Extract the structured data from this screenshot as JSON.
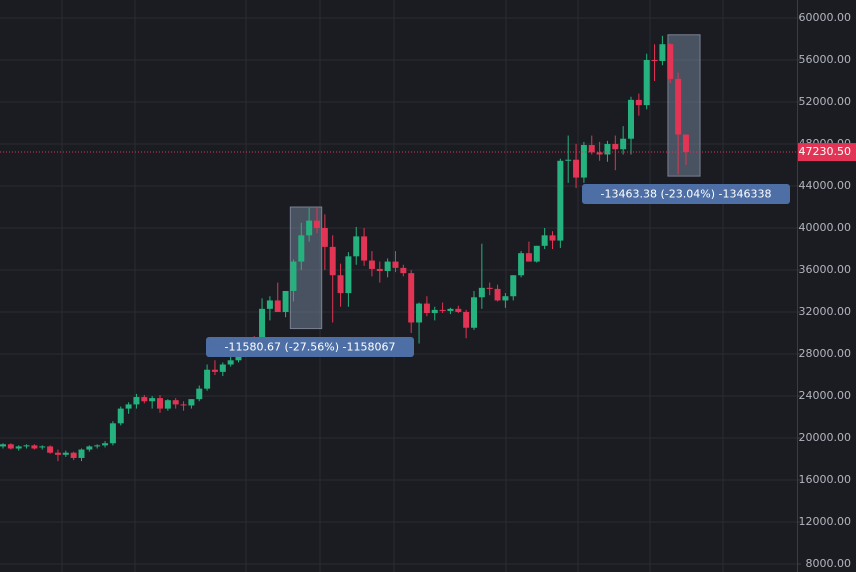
{
  "chart_data": {
    "type": "candlestick",
    "up_color": "#26b27f",
    "down_color": "#e23454",
    "grid": true,
    "ylim": [
      7240,
      61710
    ],
    "yticks": [
      {
        "value": 8000,
        "label": "8000.00"
      },
      {
        "value": 12000,
        "label": "12000.00"
      },
      {
        "value": 16000,
        "label": "16000.00"
      },
      {
        "value": 20000,
        "label": "20000.00"
      },
      {
        "value": 24000,
        "label": "24000.00"
      },
      {
        "value": 28000,
        "label": "28000.00"
      },
      {
        "value": 32000,
        "label": "32000.00"
      },
      {
        "value": 36000,
        "label": "36000.00"
      },
      {
        "value": 40000,
        "label": "40000.00"
      },
      {
        "value": 44000,
        "label": "44000.00"
      },
      {
        "value": 48000,
        "label": "48000.00"
      },
      {
        "value": 52000,
        "label": "52000.00"
      },
      {
        "value": 56000,
        "label": "56000.00"
      },
      {
        "value": 60000,
        "label": "60000.00"
      }
    ],
    "open": [
      19200,
      19400,
      19000,
      19200,
      19300,
      19100,
      19200,
      18600,
      18400,
      18600,
      18100,
      18900,
      19200,
      19300,
      19500,
      21400,
      22800,
      23200,
      23900,
      23500,
      23800,
      22800,
      23600,
      23200,
      23100,
      23700,
      24700,
      26500,
      26300,
      27000,
      27400,
      28700,
      29300,
      29000,
      32300,
      33100,
      32000,
      34000,
      36800,
      39300,
      40700,
      40000,
      38200,
      35500,
      33800,
      37300,
      39200,
      36900,
      36100,
      35900,
      36800,
      36200,
      35700,
      31000,
      32800,
      31900,
      32200,
      32100,
      32300,
      32000,
      30500,
      33400,
      34300,
      34200,
      33100,
      33500,
      35500,
      37600,
      36800,
      38300,
      39300,
      38800,
      46400,
      46500,
      44800,
      47900,
      47200,
      47000,
      48000,
      47500,
      48500,
      52200,
      51700,
      56000,
      55900,
      57500,
      54200,
      48900
    ],
    "high": [
      19500,
      19500,
      19300,
      19400,
      19400,
      19300,
      19300,
      18900,
      18800,
      18700,
      19000,
      19300,
      19400,
      19700,
      21600,
      23000,
      23400,
      24200,
      24100,
      24000,
      24100,
      23700,
      23800,
      23500,
      23700,
      25000,
      27000,
      27400,
      27200,
      28400,
      28900,
      29500,
      29700,
      33300,
      33500,
      34800,
      34000,
      37000,
      40500,
      41900,
      41900,
      41300,
      39300,
      36600,
      37700,
      40100,
      40000,
      37800,
      36800,
      37100,
      37800,
      36500,
      36000,
      32900,
      33500,
      32500,
      32900,
      32400,
      32600,
      32200,
      34000,
      38500,
      34800,
      34600,
      33800,
      35500,
      37800,
      38700,
      38300,
      40000,
      39700,
      46600,
      48800,
      48000,
      48200,
      48800,
      48200,
      48300,
      48800,
      49700,
      52500,
      52800,
      56600,
      57500,
      58300,
      57600,
      54800,
      48900
    ],
    "low": [
      19000,
      18900,
      18800,
      19000,
      18900,
      18900,
      18500,
      17800,
      18200,
      17900,
      17800,
      18700,
      19000,
      19100,
      19300,
      21200,
      22300,
      22800,
      23300,
      22800,
      22400,
      22600,
      22800,
      22600,
      22800,
      23500,
      24500,
      26000,
      25900,
      26800,
      27200,
      28200,
      28900,
      28700,
      31200,
      32000,
      31500,
      33000,
      36000,
      38700,
      39500,
      36000,
      31000,
      32500,
      32500,
      36500,
      36400,
      35400,
      34800,
      35300,
      35800,
      35400,
      30000,
      29000,
      31600,
      31200,
      31900,
      31800,
      31900,
      29500,
      30300,
      32300,
      33600,
      33000,
      32400,
      33100,
      35300,
      36900,
      36700,
      38000,
      38000,
      38100,
      44300,
      43800,
      44300,
      47000,
      46400,
      46300,
      45500,
      47000,
      47000,
      50700,
      51300,
      54000,
      55500,
      53800,
      45100,
      46000
    ],
    "close": [
      19400,
      19000,
      19200,
      19300,
      19000,
      19200,
      18600,
      18400,
      18600,
      18100,
      18900,
      19200,
      19300,
      19500,
      21400,
      22800,
      23200,
      23900,
      23500,
      23800,
      22800,
      23600,
      23200,
      23100,
      23700,
      24700,
      26500,
      26300,
      27000,
      27400,
      28700,
      29300,
      29000,
      32300,
      33100,
      32000,
      34000,
      36800,
      39300,
      40700,
      40000,
      38200,
      35500,
      33800,
      37300,
      39200,
      36900,
      36100,
      35900,
      36800,
      36200,
      35700,
      31000,
      32800,
      31900,
      32200,
      32100,
      32300,
      32000,
      30500,
      33400,
      34300,
      34200,
      33100,
      33500,
      35500,
      37600,
      36800,
      38300,
      39300,
      38800,
      46400,
      46500,
      44800,
      47900,
      47200,
      47000,
      48000,
      47500,
      48500,
      52200,
      51700,
      56000,
      55900,
      57500,
      54200,
      48900,
      47230.5
    ],
    "last_price": {
      "value": 47230.5,
      "label": "47230.50"
    },
    "annotations": [
      {
        "text": "-11580.67 (-27.56%) -1158067",
        "high": 42000,
        "low": 30419.33
      },
      {
        "text": "-13463.38 (-23.04%) -1346338",
        "high": 58400,
        "low": 44936.62
      }
    ]
  }
}
